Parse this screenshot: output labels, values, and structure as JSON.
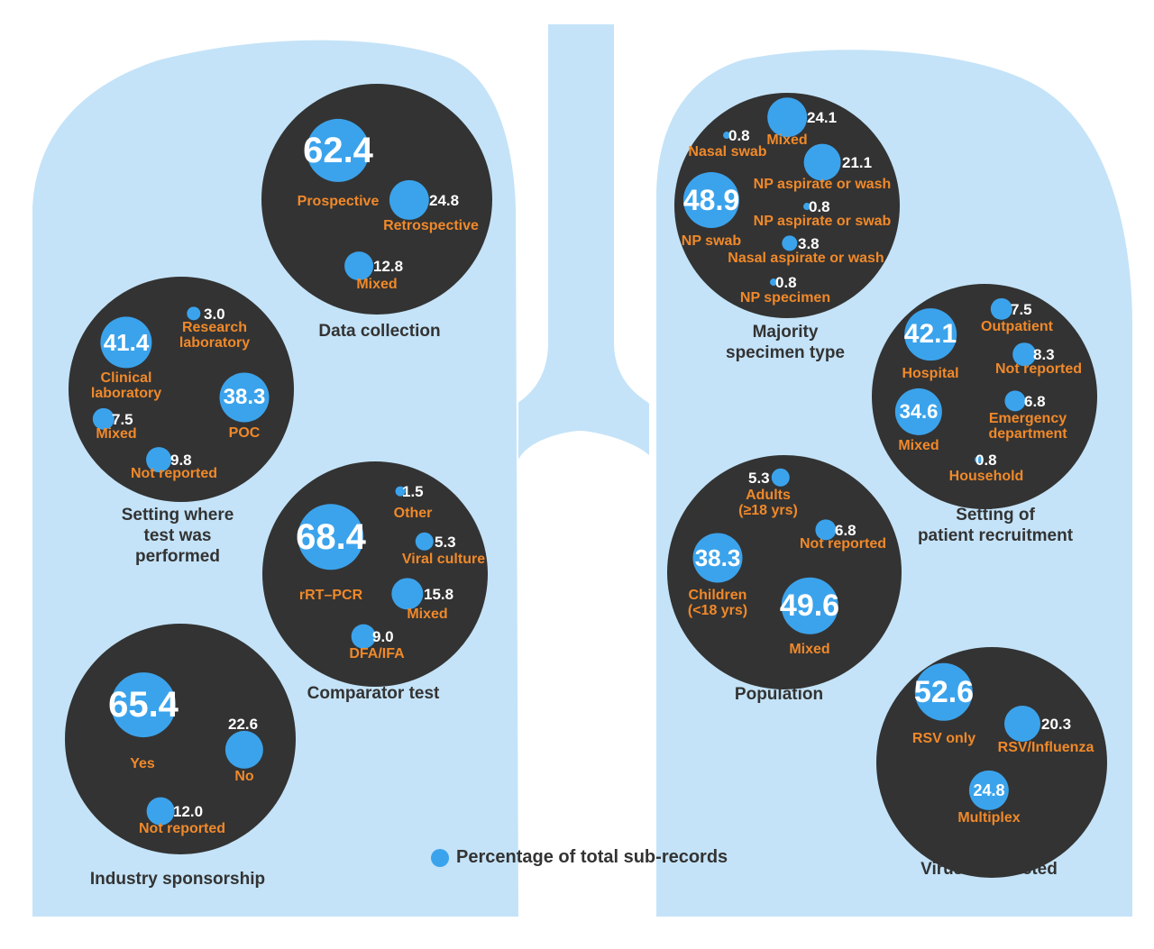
{
  "colors": {
    "lung": "#c4e3f8",
    "panel": "#333333",
    "dot": "#3ba3ec",
    "value_text": "#ffffff",
    "category_text": "#f0892a",
    "title_text": "#333333"
  },
  "legend": {
    "label": "Percentage of total sub-records"
  },
  "chart_data": {
    "type": "bubble",
    "panels": [
      {
        "title": "Data collection",
        "items": [
          {
            "value": 62.4,
            "label": "62.4",
            "category": "Prospective"
          },
          {
            "value": 24.8,
            "label": "24.8",
            "category": "Retrospective"
          },
          {
            "value": 12.8,
            "label": "12.8",
            "category": "Mixed"
          }
        ]
      },
      {
        "title": "Setting where\ntest was\nperformed",
        "items": [
          {
            "value": 41.4,
            "label": "41.4",
            "category": "Clinical\nlaboratory"
          },
          {
            "value": 38.3,
            "label": "38.3",
            "category": "POC"
          },
          {
            "value": 3.0,
            "label": "3.0",
            "category": "Research\nlaboratory"
          },
          {
            "value": 7.5,
            "label": "7.5",
            "category": "Mixed"
          },
          {
            "value": 9.8,
            "label": "9.8",
            "category": "Not reported"
          }
        ]
      },
      {
        "title": "Comparator test",
        "items": [
          {
            "value": 68.4,
            "label": "68.4",
            "category": "rRT–PCR"
          },
          {
            "value": 1.5,
            "label": "1.5",
            "category": "Other"
          },
          {
            "value": 5.3,
            "label": "5.3",
            "category": "Viral culture"
          },
          {
            "value": 15.8,
            "label": "15.8",
            "category": "Mixed"
          },
          {
            "value": 9.0,
            "label": "9.0",
            "category": "DFA/IFA"
          }
        ]
      },
      {
        "title": "Industry sponsorship",
        "items": [
          {
            "value": 65.4,
            "label": "65.4",
            "category": "Yes"
          },
          {
            "value": 22.6,
            "label": "22.6",
            "category": "No"
          },
          {
            "value": 12.0,
            "label": "12.0",
            "category": "Not reported"
          }
        ]
      },
      {
        "title": "Majority\nspecimen type",
        "items": [
          {
            "value": 48.9,
            "label": "48.9",
            "category": "NP swab"
          },
          {
            "value": 24.1,
            "label": "24.1",
            "category": "Mixed"
          },
          {
            "value": 0.8,
            "label": "0.8",
            "category": "Nasal swab"
          },
          {
            "value": 21.1,
            "label": "21.1",
            "category": "NP aspirate or wash"
          },
          {
            "value": 0.8,
            "label": "0.8",
            "category": "NP aspirate or swab"
          },
          {
            "value": 3.8,
            "label": "3.8",
            "category": "Nasal aspirate or wash"
          },
          {
            "value": 0.8,
            "label": "0.8",
            "category": "NP specimen"
          }
        ]
      },
      {
        "title": "Setting of\npatient recruitment",
        "items": [
          {
            "value": 42.1,
            "label": "42.1",
            "category": "Hospital"
          },
          {
            "value": 34.6,
            "label": "34.6",
            "category": "Mixed"
          },
          {
            "value": 7.5,
            "label": "7.5",
            "category": "Outpatient"
          },
          {
            "value": 8.3,
            "label": "8.3",
            "category": "Not reported"
          },
          {
            "value": 6.8,
            "label": "6.8",
            "category": "Emergency\ndepartment"
          },
          {
            "value": 0.8,
            "label": "0.8",
            "category": "Household"
          }
        ]
      },
      {
        "title": "Population",
        "items": [
          {
            "value": 49.6,
            "label": "49.6",
            "category": "Mixed"
          },
          {
            "value": 38.3,
            "label": "38.3",
            "category": "Children\n(<18 yrs)"
          },
          {
            "value": 5.3,
            "label": "5.3",
            "category": "Adults\n(≥18 yrs)"
          },
          {
            "value": 6.8,
            "label": "6.8",
            "category": "Not reported"
          }
        ]
      },
      {
        "title": "Viruses detected",
        "items": [
          {
            "value": 52.6,
            "label": "52.6",
            "category": "RSV only"
          },
          {
            "value": 20.3,
            "label": "20.3",
            "category": "RSV/Influenza"
          },
          {
            "value": 24.8,
            "label": "24.8",
            "category": "Multiplex"
          }
        ]
      }
    ]
  }
}
